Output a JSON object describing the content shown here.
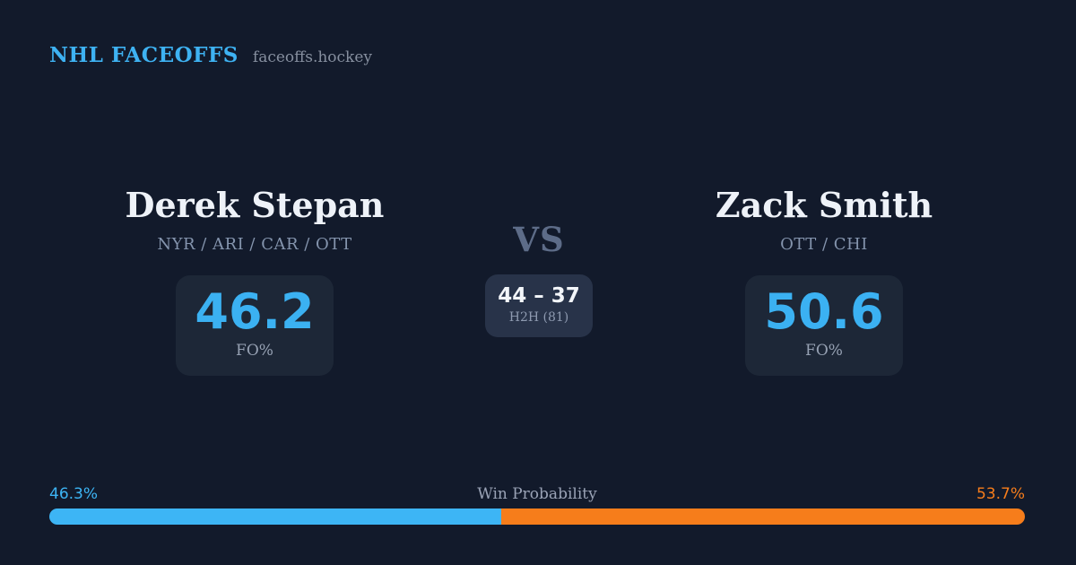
{
  "header": {
    "brand": "NHL FACEOFFS",
    "site": "faceoffs.hockey"
  },
  "matchup": {
    "vs_label": "VS",
    "h2h": {
      "score": "44 – 37",
      "label": "H2H (81)"
    },
    "player_left": {
      "name": "Derek Stepan",
      "teams": "NYR / ARI / CAR / OTT",
      "value": "46.2",
      "value_label": "FO%"
    },
    "player_right": {
      "name": "Zack Smith",
      "teams": "OTT / CHI",
      "value": "50.6",
      "value_label": "FO%"
    }
  },
  "win_probability": {
    "label": "Win Probability",
    "left": {
      "text": "46.3%",
      "value": 46.3,
      "color": "#3db5f5"
    },
    "right": {
      "text": "53.7%",
      "value": 53.7,
      "color": "#f67d1b"
    }
  }
}
